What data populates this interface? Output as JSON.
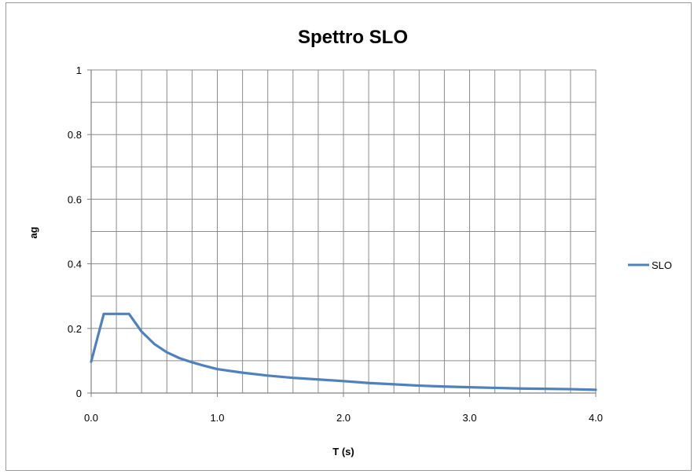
{
  "chart_data": {
    "type": "line",
    "title": "Spettro SLO",
    "xlabel": "T (s)",
    "ylabel": "ag",
    "xlim": [
      0,
      4
    ],
    "ylim": [
      0,
      1
    ],
    "x_ticks": [
      "0.0",
      "1.0",
      "2.0",
      "3.0",
      "4.0"
    ],
    "y_ticks": [
      "0",
      "0.2",
      "0.4",
      "0.6",
      "0.8",
      "1"
    ],
    "x_minor_step": 0.2,
    "y_minor_step": 0.1,
    "grid": true,
    "legend_position": "right",
    "series": [
      {
        "name": "SLO",
        "color": "#4f81bd",
        "x": [
          0.0,
          0.1,
          0.2,
          0.3,
          0.4,
          0.5,
          0.6,
          0.7,
          0.8,
          0.9,
          1.0,
          1.2,
          1.4,
          1.6,
          1.8,
          2.0,
          2.2,
          2.4,
          2.6,
          2.8,
          3.0,
          3.2,
          3.4,
          3.6,
          3.8,
          4.0
        ],
        "y": [
          0.097,
          0.245,
          0.245,
          0.245,
          0.19,
          0.152,
          0.126,
          0.108,
          0.095,
          0.084,
          0.074,
          0.063,
          0.054,
          0.047,
          0.042,
          0.037,
          0.031,
          0.027,
          0.023,
          0.02,
          0.018,
          0.016,
          0.014,
          0.013,
          0.012,
          0.01
        ]
      }
    ]
  }
}
